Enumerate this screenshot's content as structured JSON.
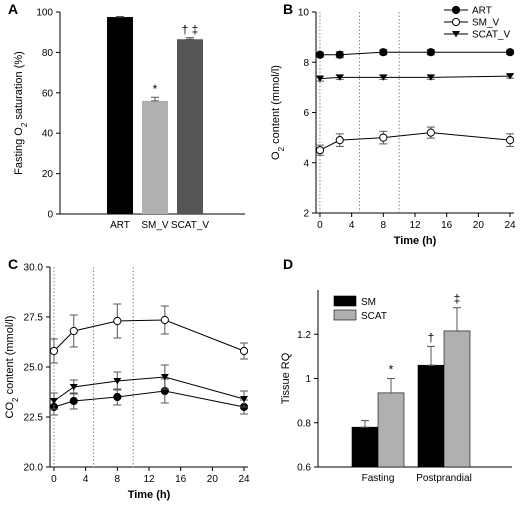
{
  "chart_data": [
    {
      "panel": "A",
      "type": "bar",
      "ylabel": "Fasting O2 saturation (%)",
      "ylim": [
        0,
        100
      ],
      "yticks": [
        0,
        20,
        40,
        60,
        80,
        100
      ],
      "categories": [
        "ART",
        "SM_V",
        "SCAT_V"
      ],
      "values": [
        97.5,
        56,
        86.5
      ],
      "errors": [
        0.3,
        1.8,
        0.8
      ],
      "colors": [
        "#000000",
        "#b0b0b0",
        "#555555"
      ],
      "annotations": [
        "",
        "*",
        "† ‡"
      ],
      "grid": false
    },
    {
      "panel": "B",
      "type": "line",
      "ylabel": "O2 content (mmol/l)",
      "xlabel": "Time (h)",
      "xlim": [
        -0.5,
        24.5
      ],
      "ylim": [
        2,
        10
      ],
      "xticks": [
        0,
        4,
        8,
        12,
        16,
        20,
        24
      ],
      "yticks": [
        2,
        4,
        6,
        8,
        10
      ],
      "vlines": [
        0,
        5,
        10
      ],
      "x": [
        0,
        2.5,
        8,
        14,
        24
      ],
      "series": [
        {
          "name": "ART",
          "marker": "circle-filled",
          "values": [
            8.3,
            8.3,
            8.4,
            8.4,
            8.4
          ],
          "errors": [
            0.1,
            0.12,
            0.1,
            0.1,
            0.08
          ]
        },
        {
          "name": "SM_V",
          "marker": "circle-open",
          "values": [
            4.5,
            4.9,
            5.0,
            5.2,
            4.9
          ],
          "errors": [
            0.2,
            0.25,
            0.25,
            0.22,
            0.25
          ]
        },
        {
          "name": "SCAT_V",
          "marker": "triangle-down-filled",
          "values": [
            7.35,
            7.4,
            7.4,
            7.4,
            7.45
          ],
          "errors": [
            0.1,
            0.08,
            0.08,
            0.08,
            0.08
          ]
        }
      ],
      "legend_position": "top-right",
      "grid": false
    },
    {
      "panel": "C",
      "type": "line",
      "ylabel": "CO2 content (mmol/l)",
      "xlabel": "Time (h)",
      "xlim": [
        -0.5,
        24.5
      ],
      "ylim": [
        20,
        30
      ],
      "xticks": [
        0,
        4,
        8,
        12,
        16,
        20,
        24
      ],
      "ytick_labels": [
        "20.0",
        "22.5",
        "25.0",
        "27.5",
        "30.0"
      ],
      "yticks": [
        20,
        22.5,
        25,
        27.5,
        30
      ],
      "vlines": [
        0,
        5,
        10
      ],
      "x": [
        0,
        2.5,
        8,
        14,
        24
      ],
      "series": [
        {
          "name": "ART",
          "marker": "circle-filled",
          "values": [
            23.0,
            23.3,
            23.5,
            23.8,
            23.0
          ],
          "errors": [
            0.4,
            0.4,
            0.4,
            0.6,
            0.35
          ]
        },
        {
          "name": "SM_V",
          "marker": "circle-open",
          "values": [
            25.8,
            26.8,
            27.3,
            27.35,
            25.8
          ],
          "errors": [
            0.6,
            0.8,
            0.85,
            0.7,
            0.4
          ]
        },
        {
          "name": "SCAT_V",
          "marker": "triangle-down-filled",
          "values": [
            23.3,
            24.0,
            24.3,
            24.5,
            23.4
          ],
          "errors": [
            0.4,
            0.35,
            0.45,
            0.6,
            0.4
          ]
        }
      ],
      "grid": false
    },
    {
      "panel": "D",
      "type": "bar",
      "ylabel": "Tissue RQ",
      "ylim": [
        0.6,
        1.4
      ],
      "yticks": [
        0.6,
        0.8,
        1.0,
        1.2
      ],
      "ytick_labels": [
        "0.6",
        "0.8",
        "1",
        "1.2"
      ],
      "categories": [
        "Fasting",
        "Postprandial"
      ],
      "series": [
        {
          "name": "SM",
          "color": "#000000",
          "values": [
            0.78,
            1.06
          ],
          "errors": [
            0.03,
            0.085
          ]
        },
        {
          "name": "SCAT",
          "color": "#b0b0b0",
          "values": [
            0.935,
            1.215
          ],
          "errors": [
            0.065,
            0.105
          ]
        }
      ],
      "annotations": [
        [
          "",
          "*"
        ],
        [
          "†",
          "‡"
        ]
      ],
      "legend_position": "top-left",
      "grid": false
    }
  ]
}
